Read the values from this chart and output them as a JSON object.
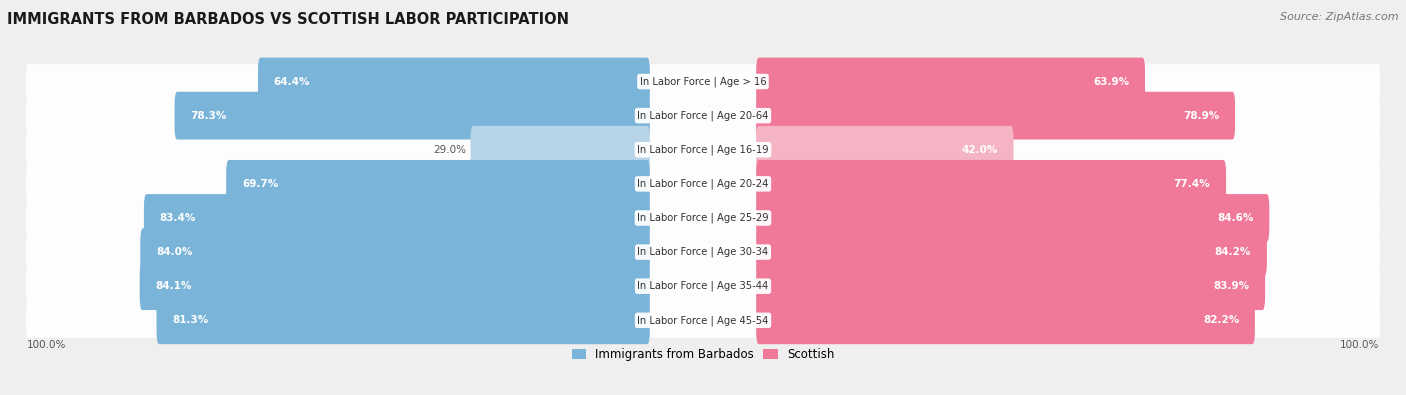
{
  "title": "IMMIGRANTS FROM BARBADOS VS SCOTTISH LABOR PARTICIPATION",
  "source": "Source: ZipAtlas.com",
  "categories": [
    "In Labor Force | Age > 16",
    "In Labor Force | Age 20-64",
    "In Labor Force | Age 16-19",
    "In Labor Force | Age 20-24",
    "In Labor Force | Age 25-29",
    "In Labor Force | Age 30-34",
    "In Labor Force | Age 35-44",
    "In Labor Force | Age 45-54"
  ],
  "barbados_values": [
    64.4,
    78.3,
    29.0,
    69.7,
    83.4,
    84.0,
    84.1,
    81.3
  ],
  "scottish_values": [
    63.9,
    78.9,
    42.0,
    77.4,
    84.6,
    84.2,
    83.9,
    82.2
  ],
  "barbados_color": "#7ab4d8",
  "barbados_color_light": "#b8d4e8",
  "scottish_color": "#f07898",
  "scottish_color_light": "#f4b4c4",
  "background_color": "#efefef",
  "legend_barbados": "Immigrants from Barbados",
  "legend_scottish": "Scottish",
  "title_fontsize": 10.5,
  "source_fontsize": 8,
  "value_fontsize": 7.5,
  "category_fontsize": 7.2,
  "bar_max": 100.0
}
